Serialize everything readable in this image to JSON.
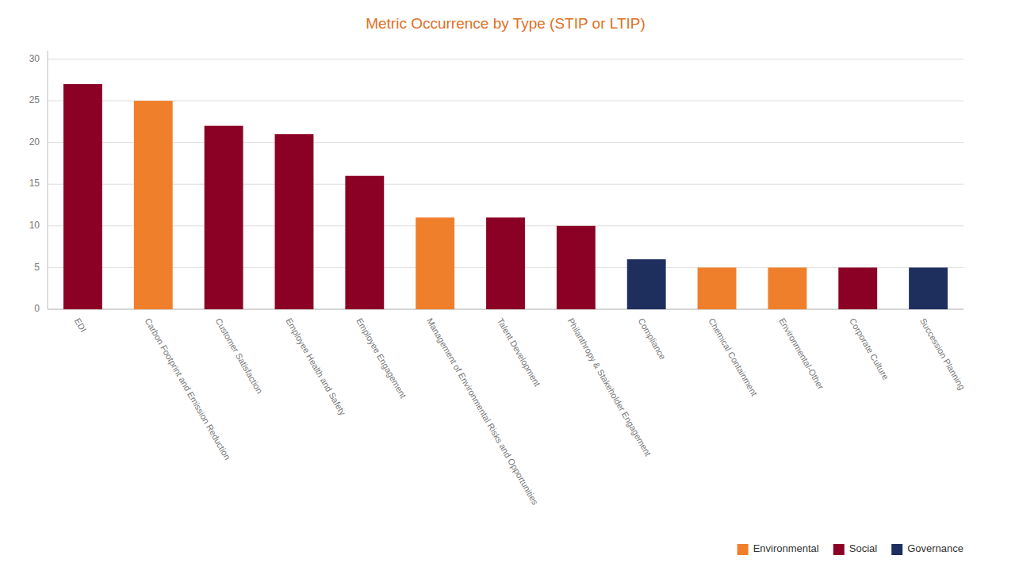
{
  "chart_data": {
    "type": "bar",
    "title": "Metric Occurrence by Type (STIP or LTIP)",
    "categories": [
      "EDI",
      "Carbon Footprint and Emission Reduction",
      "Customer Satisfaction",
      "Employee Health and Safety",
      "Employee Engagement",
      "Management of Environmental Risks and Opportunities",
      "Talent Development",
      "Philanthropy & Stakeholder Engagement",
      "Compliance",
      "Chemical Containment",
      "Environmental-Other",
      "Corporate Culture",
      "Succession Planning"
    ],
    "series": [
      {
        "name": "Environmental",
        "color": "#F07F2B",
        "values": [
          null,
          25,
          null,
          null,
          null,
          11,
          null,
          null,
          null,
          5,
          5,
          null,
          null
        ]
      },
      {
        "name": "Social",
        "color": "#8B0025",
        "values": [
          27,
          null,
          22,
          21,
          16,
          null,
          11,
          10,
          null,
          null,
          null,
          5,
          null
        ]
      },
      {
        "name": "Governance",
        "color": "#1E2F5E",
        "values": [
          null,
          null,
          null,
          null,
          null,
          null,
          null,
          null,
          6,
          null,
          null,
          null,
          5
        ]
      }
    ],
    "stacked": true,
    "ylim": [
      0,
      31
    ],
    "yticks": [
      0,
      5,
      10,
      15,
      20,
      25,
      30
    ],
    "grid": true,
    "legend": "lower right"
  }
}
